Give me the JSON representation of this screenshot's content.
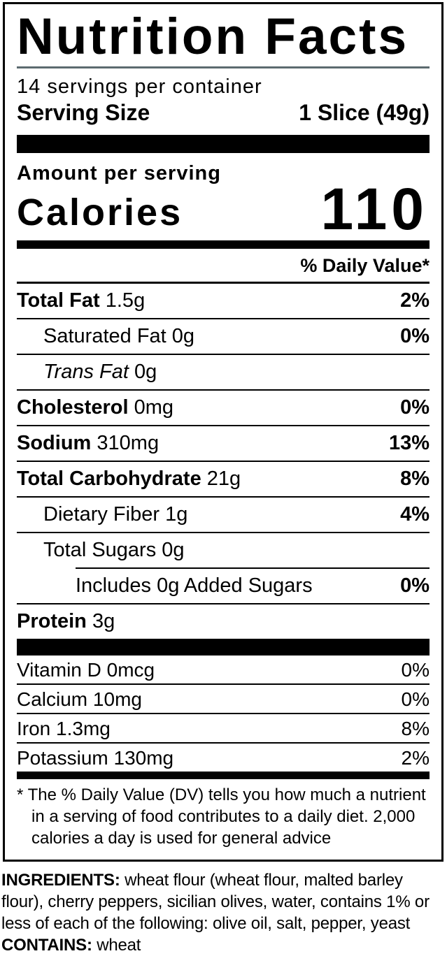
{
  "colors": {
    "title_divider": "#5c6b6f",
    "text": "#000000",
    "background": "#ffffff"
  },
  "label": {
    "title": "Nutrition Facts",
    "servings_per_container": "14 servings per container",
    "serving_size": {
      "label": "Serving Size",
      "value": "1 Slice (49g)"
    },
    "amount_per_serving": "Amount per serving",
    "calories": {
      "label": "Calories",
      "value": "110"
    },
    "daily_value_header": "% Daily Value*",
    "nutrients": [
      {
        "name": "Total Fat",
        "amount": "1.5g",
        "dv": "2%"
      },
      {
        "name": "Saturated Fat",
        "amount": "0g",
        "dv": "0%"
      },
      {
        "name": "Trans Fat",
        "amount": "0g",
        "dv": ""
      },
      {
        "name": "Cholesterol",
        "amount": "0mg",
        "dv": "0%"
      },
      {
        "name": "Sodium",
        "amount": "310mg",
        "dv": "13%"
      },
      {
        "name": "Total Carbohydrate",
        "amount": "21g",
        "dv": "8%"
      },
      {
        "name": "Dietary Fiber",
        "amount": "1g",
        "dv": "4%"
      },
      {
        "name": "Total Sugars",
        "amount": "0g",
        "dv": ""
      },
      {
        "name": "Includes 0g Added Sugars",
        "amount": "",
        "dv": "0%"
      },
      {
        "name": "Protein",
        "amount": "3g",
        "dv": ""
      }
    ],
    "micronutrients": [
      {
        "name": "Vitamin D",
        "amount": "0mcg",
        "dv": "0%"
      },
      {
        "name": "Calcium",
        "amount": "10mg",
        "dv": "0%"
      },
      {
        "name": "Iron",
        "amount": "1.3mg",
        "dv": "8%"
      },
      {
        "name": "Potassium",
        "amount": "130mg",
        "dv": "2%"
      }
    ],
    "footnote": {
      "marker": "*",
      "text": "The % Daily Value (DV) tells you how much a nutrient in a serving of food contributes to a daily diet. 2,000 calories a day is used for general advice"
    }
  },
  "ingredients": {
    "heading": "INGREDIENTS:",
    "list": " wheat flour (wheat flour, malted barley flour), cherry peppers, sicilian olives, water, contains 1% or less of each of the following: olive oil, salt, pepper, yeast ",
    "contains_heading": "CONTAINS:",
    "contains_value": " wheat"
  }
}
